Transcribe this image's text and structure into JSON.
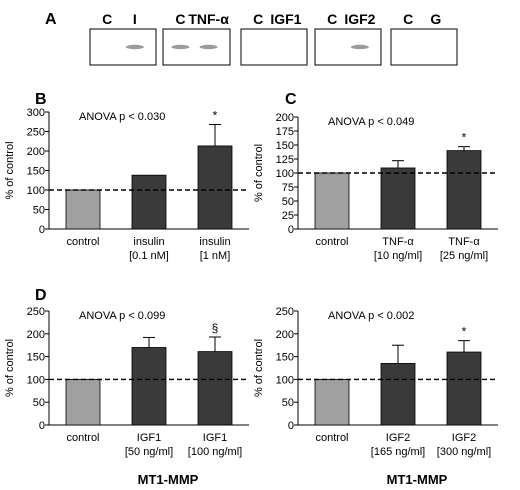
{
  "panel_a": {
    "label": "A",
    "blots": [
      {
        "lanes": [
          "C",
          "I"
        ],
        "bands": [
          0,
          1
        ]
      },
      {
        "lanes": [
          "C",
          "TNF-α"
        ],
        "bands": [
          1,
          1
        ]
      },
      {
        "lanes": [
          "C",
          "IGF1"
        ],
        "bands": [
          0,
          0
        ]
      },
      {
        "lanes": [
          "C",
          "IGF2"
        ],
        "bands": [
          0,
          1
        ]
      },
      {
        "lanes": [
          "C",
          "G"
        ],
        "bands": [
          0,
          0
        ]
      }
    ]
  },
  "bottom_labels": [
    "MT1-MMP",
    "MT1-MMP"
  ],
  "colors": {
    "control": "#a0a0a0",
    "treated": "#3a3a3a",
    "axis": "#000000"
  },
  "chart_data": [
    {
      "panel": "B",
      "type": "bar",
      "annotation": "ANOVA p < 0.030",
      "ylabel": "% of control",
      "ylim": [
        0,
        300
      ],
      "yticks": [
        0,
        50,
        100,
        150,
        200,
        250,
        300
      ],
      "reference_line": 100,
      "categories": [
        [
          "control"
        ],
        [
          "insulin",
          "[0.1 nM]"
        ],
        [
          "insulin",
          "[1 nM]"
        ]
      ],
      "values": [
        100,
        138,
        213
      ],
      "errors": [
        0,
        0,
        55
      ],
      "marks": [
        "",
        "",
        "*"
      ]
    },
    {
      "panel": "C",
      "type": "bar",
      "annotation": "ANOVA p < 0.049",
      "ylabel": "% of control",
      "ylim": [
        0,
        200
      ],
      "yticks": [
        0,
        25,
        50,
        75,
        100,
        125,
        150,
        175,
        200
      ],
      "reference_line": 100,
      "categories": [
        [
          "control"
        ],
        [
          "TNF-α",
          "[10 ng/ml]"
        ],
        [
          "TNF-α",
          "[25 ng/ml]"
        ]
      ],
      "values": [
        100,
        109,
        140
      ],
      "errors": [
        0,
        13,
        7
      ],
      "marks": [
        "",
        "",
        "*"
      ]
    },
    {
      "panel": "D",
      "type": "bar",
      "annotation": "ANOVA p < 0.099",
      "ylabel": "% of control",
      "ylim": [
        0,
        250
      ],
      "yticks": [
        0,
        50,
        100,
        150,
        200,
        250
      ],
      "reference_line": 100,
      "categories": [
        [
          "control"
        ],
        [
          "IGF1",
          "[50 ng/ml]"
        ],
        [
          "IGF1",
          "[100 ng/ml]"
        ]
      ],
      "values": [
        100,
        170,
        161
      ],
      "errors": [
        0,
        22,
        32
      ],
      "marks": [
        "",
        "",
        "§"
      ]
    },
    {
      "panel": "",
      "type": "bar",
      "annotation": "ANOVA p < 0.002",
      "ylabel": "% of control",
      "ylim": [
        0,
        250
      ],
      "yticks": [
        0,
        50,
        100,
        150,
        200,
        250
      ],
      "reference_line": 100,
      "categories": [
        [
          "control"
        ],
        [
          "IGF2",
          "[165 ng/ml]"
        ],
        [
          "IGF2",
          "[300 ng/ml]"
        ]
      ],
      "values": [
        100,
        135,
        160
      ],
      "errors": [
        0,
        40,
        25
      ],
      "marks": [
        "",
        "",
        "*"
      ]
    }
  ]
}
